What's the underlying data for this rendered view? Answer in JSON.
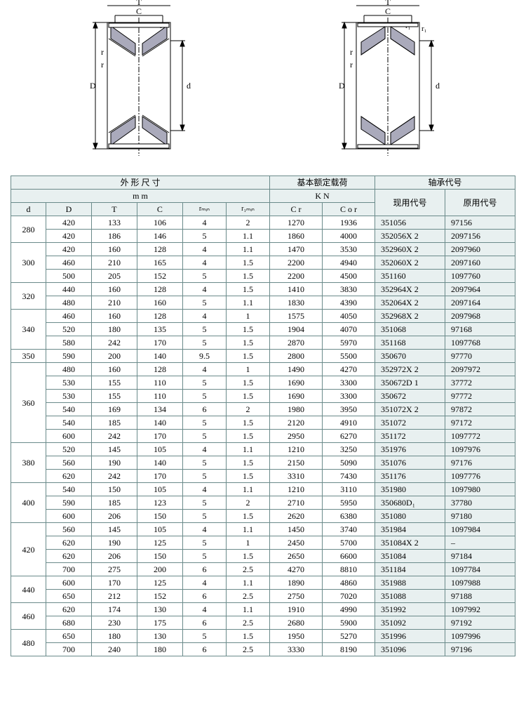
{
  "diagram_labels": {
    "T": "T",
    "C": "C",
    "r": "r",
    "r1": "r₁",
    "D": "D",
    "d": "d",
    "rmm": "rₘₘ",
    "r1mm": "r₁ₘₘ"
  },
  "headers": {
    "dims": "外 形 尺 寸",
    "load": "基本额定载荷",
    "code": "轴承代号",
    "mm": "m m",
    "kn": "K N",
    "now": "现用代号",
    "old": "原用代号",
    "d": "d",
    "D": "D",
    "T": "T",
    "C": "C",
    "rmin": "rₘᵢₙ",
    "r1min": "r₁ₘᵢₙ",
    "Cr": "C r",
    "Cor": "C o r"
  },
  "colors": {
    "header_bg": "#e8f0f0",
    "border": "#6a8a8a",
    "text": "#000000",
    "bg": "#ffffff"
  },
  "groups": [
    {
      "d": "280",
      "rows": [
        {
          "D": "420",
          "T": "133",
          "C": "106",
          "rmin": "4",
          "r1min": "2",
          "Cr": "1270",
          "Cor": "1936",
          "now": "351056",
          "old": "97156"
        },
        {
          "D": "420",
          "T": "186",
          "C": "146",
          "rmin": "5",
          "r1min": "1.1",
          "Cr": "1860",
          "Cor": "4000",
          "now": "352056X 2",
          "old": "2097156"
        }
      ]
    },
    {
      "d": "300",
      "rows": [
        {
          "D": "420",
          "T": "160",
          "C": "128",
          "rmin": "4",
          "r1min": "1.1",
          "Cr": "1470",
          "Cor": "3530",
          "now": "352960X 2",
          "old": "2097960"
        },
        {
          "D": "460",
          "T": "210",
          "C": "165",
          "rmin": "4",
          "r1min": "1.5",
          "Cr": "2200",
          "Cor": "4940",
          "now": "352060X 2",
          "old": "2097160"
        },
        {
          "D": "500",
          "T": "205",
          "C": "152",
          "rmin": "5",
          "r1min": "1.5",
          "Cr": "2200",
          "Cor": "4500",
          "now": "351160",
          "old": "1097760"
        }
      ]
    },
    {
      "d": "320",
      "rows": [
        {
          "D": "440",
          "T": "160",
          "C": "128",
          "rmin": "4",
          "r1min": "1.5",
          "Cr": "1410",
          "Cor": "3830",
          "now": "352964X 2",
          "old": "2097964"
        },
        {
          "D": "480",
          "T": "210",
          "C": "160",
          "rmin": "5",
          "r1min": "1.1",
          "Cr": "1830",
          "Cor": "4390",
          "now": "352064X 2",
          "old": "2097164"
        }
      ]
    },
    {
      "d": "340",
      "rows": [
        {
          "D": "460",
          "T": "160",
          "C": "128",
          "rmin": "4",
          "r1min": "1",
          "Cr": "1575",
          "Cor": "4050",
          "now": "352968X 2",
          "old": "2097968"
        },
        {
          "D": "520",
          "T": "180",
          "C": "135",
          "rmin": "5",
          "r1min": "1.5",
          "Cr": "1904",
          "Cor": "4070",
          "now": "351068",
          "old": "97168"
        },
        {
          "D": "580",
          "T": "242",
          "C": "170",
          "rmin": "5",
          "r1min": "1.5",
          "Cr": "2870",
          "Cor": "5970",
          "now": "351168",
          "old": "1097768"
        }
      ]
    },
    {
      "d": "350",
      "rows": [
        {
          "D": "590",
          "T": "200",
          "C": "140",
          "rmin": "9.5",
          "r1min": "1.5",
          "Cr": "2800",
          "Cor": "5500",
          "now": "350670",
          "old": "97770"
        }
      ]
    },
    {
      "d": "360",
      "rows": [
        {
          "D": "480",
          "T": "160",
          "C": "128",
          "rmin": "4",
          "r1min": "1",
          "Cr": "1490",
          "Cor": "4270",
          "now": "352972X 2",
          "old": "2097972"
        },
        {
          "D": "530",
          "T": "155",
          "C": "110",
          "rmin": "5",
          "r1min": "1.5",
          "Cr": "1690",
          "Cor": "3300",
          "now": "350672D 1",
          "old": "37772"
        },
        {
          "D": "530",
          "T": "155",
          "C": "110",
          "rmin": "5",
          "r1min": "1.5",
          "Cr": "1690",
          "Cor": "3300",
          "now": "350672",
          "old": "97772"
        },
        {
          "D": "540",
          "T": "169",
          "C": "134",
          "rmin": "6",
          "r1min": "2",
          "Cr": "1980",
          "Cor": "3950",
          "now": "351072X 2",
          "old": "97872"
        },
        {
          "D": "540",
          "T": "185",
          "C": "140",
          "rmin": "5",
          "r1min": "1.5",
          "Cr": "2120",
          "Cor": "4910",
          "now": "351072",
          "old": "97172"
        },
        {
          "D": "600",
          "T": "242",
          "C": "170",
          "rmin": "5",
          "r1min": "1.5",
          "Cr": "2950",
          "Cor": "6270",
          "now": "351172",
          "old": "1097772"
        }
      ]
    },
    {
      "d": "380",
      "rows": [
        {
          "D": "520",
          "T": "145",
          "C": "105",
          "rmin": "4",
          "r1min": "1.1",
          "Cr": "1210",
          "Cor": "3250",
          "now": "351976",
          "old": "1097976"
        },
        {
          "D": "560",
          "T": "190",
          "C": "140",
          "rmin": "5",
          "r1min": "1.5",
          "Cr": "2150",
          "Cor": "5090",
          "now": "351076",
          "old": "97176"
        },
        {
          "D": "620",
          "T": "242",
          "C": "170",
          "rmin": "5",
          "r1min": "1.5",
          "Cr": "3310",
          "Cor": "7430",
          "now": "351176",
          "old": "1097776"
        }
      ]
    },
    {
      "d": "400",
      "rows": [
        {
          "D": "540",
          "T": "150",
          "C": "105",
          "rmin": "4",
          "r1min": "1.1",
          "Cr": "1210",
          "Cor": "3110",
          "now": "351980",
          "old": "1097980"
        },
        {
          "D": "590",
          "T": "185",
          "C": "123",
          "rmin": "5",
          "r1min": "2",
          "Cr": "2710",
          "Cor": "5950",
          "now": "350680D₁",
          "old": "37780"
        },
        {
          "D": "600",
          "T": "206",
          "C": "150",
          "rmin": "5",
          "r1min": "1.5",
          "Cr": "2620",
          "Cor": "6380",
          "now": "351080",
          "old": "97180"
        }
      ]
    },
    {
      "d": "420",
      "rows": [
        {
          "D": "560",
          "T": "145",
          "C": "105",
          "rmin": "4",
          "r1min": "1.1",
          "Cr": "1450",
          "Cor": "3740",
          "now": "351984",
          "old": "1097984"
        },
        {
          "D": "620",
          "T": "190",
          "C": "125",
          "rmin": "5",
          "r1min": "1",
          "Cr": "2450",
          "Cor": "5700",
          "now": "351084X 2",
          "old": "–"
        },
        {
          "D": "620",
          "T": "206",
          "C": "150",
          "rmin": "5",
          "r1min": "1.5",
          "Cr": "2650",
          "Cor": "6600",
          "now": "351084",
          "old": "97184"
        },
        {
          "D": "700",
          "T": "275",
          "C": "200",
          "rmin": "6",
          "r1min": "2.5",
          "Cr": "4270",
          "Cor": "8810",
          "now": "351184",
          "old": "1097784"
        }
      ]
    },
    {
      "d": "440",
      "rows": [
        {
          "D": "600",
          "T": "170",
          "C": "125",
          "rmin": "4",
          "r1min": "1.1",
          "Cr": "1890",
          "Cor": "4860",
          "now": "351988",
          "old": "1097988"
        },
        {
          "D": "650",
          "T": "212",
          "C": "152",
          "rmin": "6",
          "r1min": "2.5",
          "Cr": "2750",
          "Cor": "7020",
          "now": "351088",
          "old": "97188"
        }
      ]
    },
    {
      "d": "460",
      "rows": [
        {
          "D": "620",
          "T": "174",
          "C": "130",
          "rmin": "4",
          "r1min": "1.1",
          "Cr": "1910",
          "Cor": "4990",
          "now": "351992",
          "old": "1097992"
        },
        {
          "D": "680",
          "T": "230",
          "C": "175",
          "rmin": "6",
          "r1min": "2.5",
          "Cr": "2680",
          "Cor": "5900",
          "now": "351092",
          "old": "97192"
        }
      ]
    },
    {
      "d": "480",
      "rows": [
        {
          "D": "650",
          "T": "180",
          "C": "130",
          "rmin": "5",
          "r1min": "1.5",
          "Cr": "1950",
          "Cor": "5270",
          "now": "351996",
          "old": "1097996"
        },
        {
          "D": "700",
          "T": "240",
          "C": "180",
          "rmin": "6",
          "r1min": "2.5",
          "Cr": "3330",
          "Cor": "8190",
          "now": "351096",
          "old": "97196"
        }
      ]
    }
  ]
}
